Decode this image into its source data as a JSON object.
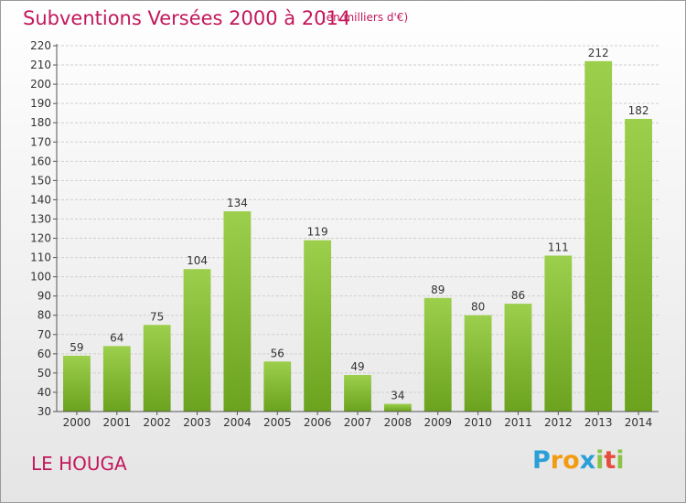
{
  "title": "Subventions Versées 2000 à 2014",
  "subtitle": "(en milliers d'€)",
  "commune": "LE HOUGA",
  "logo": {
    "letters": [
      "P",
      "r",
      "o",
      "x",
      "i",
      "t",
      "i"
    ],
    "colors": [
      "#2a9fd8",
      "#f39c12",
      "#f39c12",
      "#2a9fd8",
      "#8bc34a",
      "#e74c3c",
      "#8bc34a"
    ]
  },
  "chart_data": {
    "type": "bar",
    "categories": [
      "2000",
      "2001",
      "2002",
      "2003",
      "2004",
      "2005",
      "2006",
      "2007",
      "2008",
      "2009",
      "2010",
      "2011",
      "2012",
      "2013",
      "2014"
    ],
    "values": [
      59,
      64,
      75,
      104,
      134,
      56,
      119,
      49,
      34,
      89,
      80,
      86,
      111,
      212,
      182
    ],
    "ylim": [
      30,
      220
    ],
    "ytick_step": 10,
    "grid": true,
    "colors": {
      "bar_light": "#9ccf4c",
      "bar_dark": "#6ba21e",
      "grid": "#cfcfcf",
      "axis": "#555555"
    }
  }
}
